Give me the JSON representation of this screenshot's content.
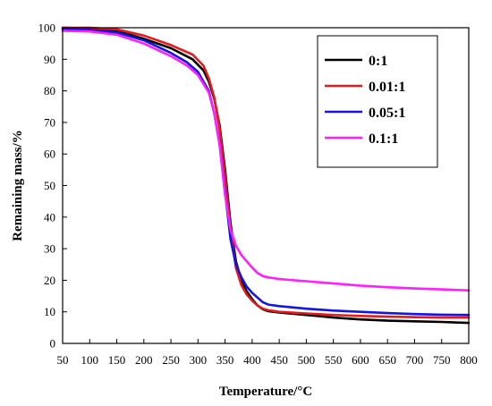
{
  "chart_data": {
    "type": "line",
    "title": "",
    "xlabel": "Temperature/°C",
    "ylabel": "Remaining mass/%",
    "xlim": [
      50,
      800
    ],
    "ylim": [
      0,
      100
    ],
    "xticks": [
      50,
      100,
      150,
      200,
      250,
      300,
      350,
      400,
      450,
      500,
      550,
      600,
      650,
      700,
      750,
      800
    ],
    "yticks": [
      0,
      10,
      20,
      30,
      40,
      50,
      60,
      70,
      80,
      90,
      100
    ],
    "grid": false,
    "legend_position": "top-right",
    "series": [
      {
        "name": "0:1",
        "color": "#000000",
        "x": [
          50,
          100,
          150,
          200,
          250,
          290,
          310,
          320,
          330,
          340,
          350,
          360,
          370,
          380,
          390,
          400,
          410,
          420,
          430,
          450,
          500,
          550,
          600,
          650,
          700,
          750,
          800
        ],
        "y": [
          100,
          99.8,
          99,
          96.5,
          93.5,
          90,
          86.5,
          83,
          77.5,
          69,
          55,
          38,
          26,
          20,
          16.5,
          14,
          12,
          10.8,
          10.2,
          9.8,
          9,
          8.2,
          7.6,
          7.2,
          7,
          6.8,
          6.5
        ]
      },
      {
        "name": "0.01:1",
        "color": "#e41a1c",
        "x": [
          50,
          100,
          150,
          200,
          250,
          290,
          310,
          320,
          330,
          340,
          350,
          360,
          370,
          380,
          390,
          400,
          410,
          420,
          430,
          450,
          500,
          550,
          600,
          650,
          700,
          750,
          800
        ],
        "y": [
          100,
          100,
          99.5,
          97.5,
          94.5,
          91.5,
          88,
          84,
          78,
          68,
          53,
          36,
          24,
          18.5,
          15.5,
          13.5,
          12,
          11,
          10.5,
          10,
          9.5,
          9,
          8.7,
          8.5,
          8.3,
          8.2,
          8.2
        ]
      },
      {
        "name": "0.05:1",
        "color": "#1414e6",
        "x": [
          50,
          100,
          150,
          200,
          250,
          280,
          300,
          320,
          330,
          340,
          350,
          360,
          370,
          380,
          390,
          400,
          410,
          420,
          430,
          450,
          500,
          550,
          600,
          650,
          700,
          750,
          800
        ],
        "y": [
          99.5,
          99.3,
          98.5,
          96,
          92,
          89,
          86,
          80,
          73,
          63,
          48,
          33,
          25,
          21,
          18,
          16,
          14.5,
          13,
          12.3,
          11.8,
          11,
          10.4,
          10,
          9.6,
          9.3,
          9.1,
          9
        ]
      },
      {
        "name": "0.1:1",
        "color": "#ff1eff",
        "x": [
          50,
          100,
          150,
          200,
          250,
          280,
          300,
          320,
          330,
          340,
          350,
          360,
          370,
          380,
          390,
          400,
          410,
          420,
          430,
          450,
          500,
          550,
          600,
          650,
          700,
          750,
          800
        ],
        "y": [
          99,
          98.8,
          97.8,
          95,
          91,
          88,
          85,
          79.5,
          73,
          63,
          47,
          36,
          31,
          28,
          26,
          24,
          22.3,
          21.3,
          20.9,
          20.4,
          19.7,
          19,
          18.3,
          17.8,
          17.4,
          17.1,
          16.8
        ]
      }
    ]
  }
}
